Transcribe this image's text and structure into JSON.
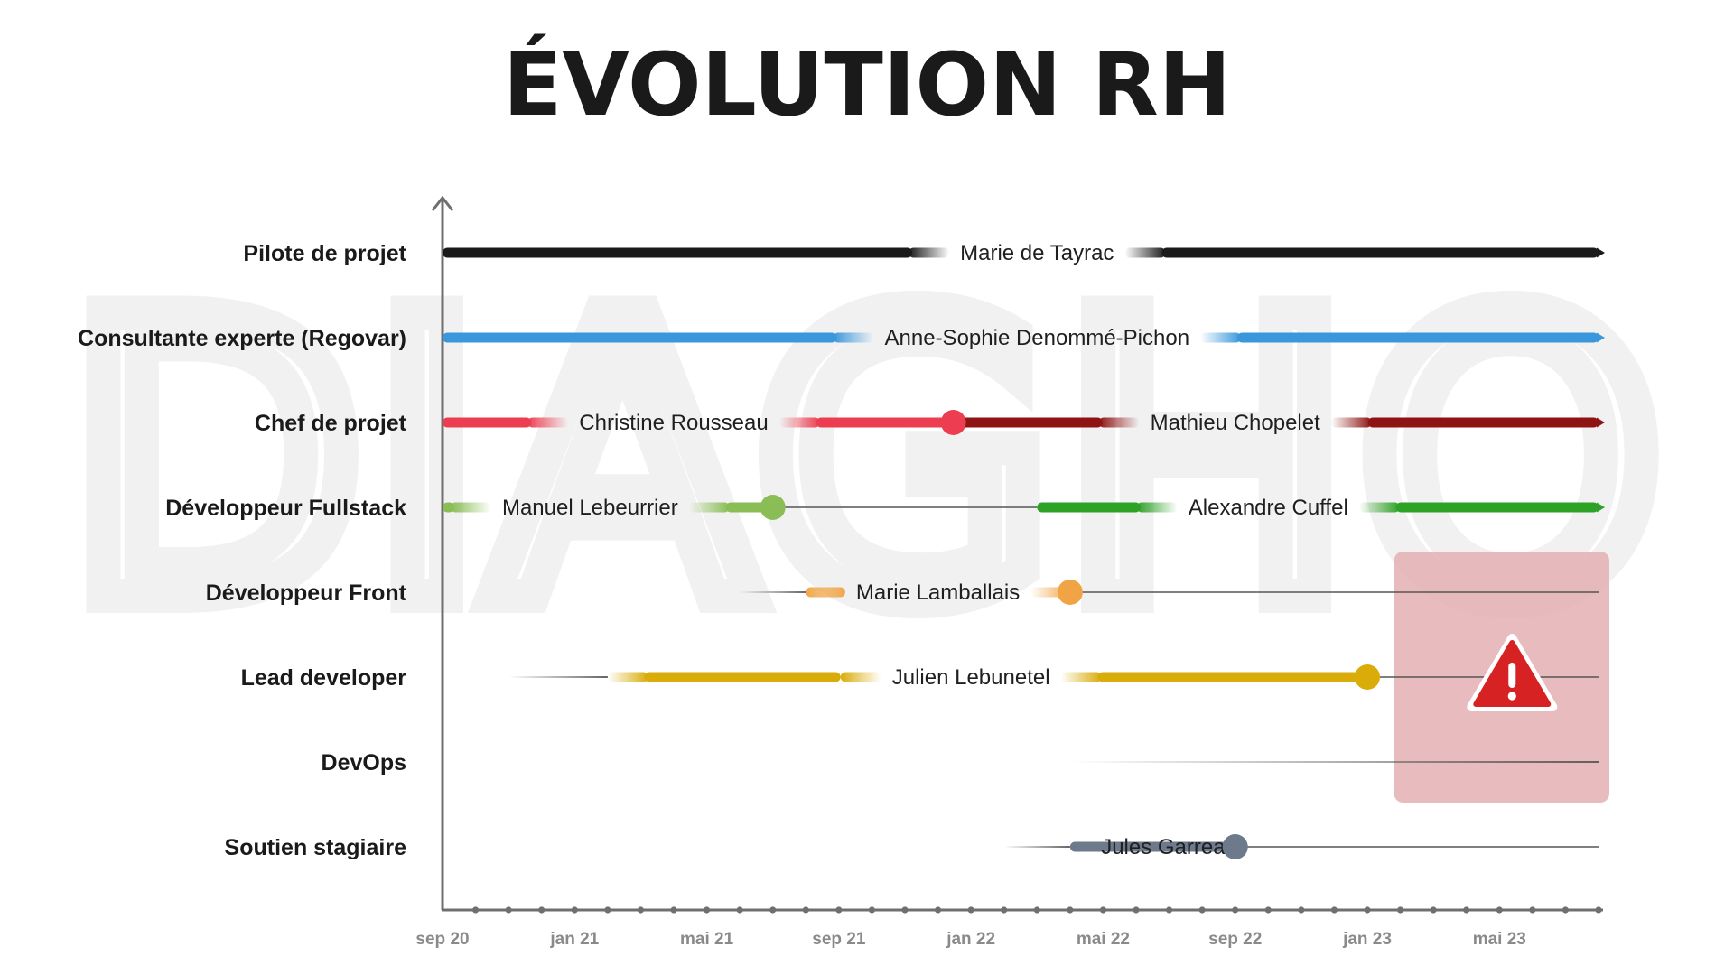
{
  "title": "ÉVOLUTION RH",
  "watermark": "DIAGHO",
  "colors": {
    "axis": "#6f6f6f",
    "thin_line": "#555555",
    "warning_zone": "#e4b0b4",
    "warning_red": "#d62222"
  },
  "chart_data": {
    "type": "gantt",
    "x_axis": {
      "ticks": [
        "sep 20",
        "jan 21",
        "mai 21",
        "sep 21",
        "jan 22",
        "mai 22",
        "sep 22",
        "jan 23",
        "mai 23"
      ],
      "range": [
        "2020-09",
        "2023-08"
      ],
      "minor_tick_interval": "1 month"
    },
    "rows": [
      {
        "role": "Pilote de projet",
        "segments": [
          {
            "person": "Marie de Tayrac",
            "color": "#1a1a1a",
            "start": "2020-09",
            "end": "2023-08",
            "ongoing": true,
            "label_at": "2022-03"
          }
        ]
      },
      {
        "role": "Consultante experte (Regovar)",
        "segments": [
          {
            "person": "Anne-Sophie Denommé-Pichon",
            "color": "#3b97dc",
            "start": "2020-09",
            "end": "2023-08",
            "ongoing": true,
            "label_at": "2022-03"
          }
        ]
      },
      {
        "role": "Chef de projet",
        "segments": [
          {
            "person": "Christine Rousseau",
            "color": "#ec3e50",
            "start": "2020-09",
            "end": "2021-12-15",
            "end_marker": true,
            "label_at": "2021-04"
          },
          {
            "person": "Mathieu Chopelet",
            "color": "#8e1414",
            "start": "2021-12-15",
            "end": "2023-08",
            "ongoing": true,
            "label_at": "2022-09"
          }
        ]
      },
      {
        "role": "Développeur Fullstack",
        "segments": [
          {
            "person": "Manuel Lebeurrier",
            "color": "#8abd55",
            "start": "2020-09",
            "end": "2021-07",
            "end_marker": true,
            "trail_to": "2022-03",
            "label_at": "2021-01-15"
          },
          {
            "person": "Alexandre Cuffel",
            "color": "#2ea226",
            "start": "2022-03",
            "end": "2023-08",
            "ongoing": true,
            "label_at": "2022-10"
          }
        ]
      },
      {
        "role": "Développeur Front",
        "segments": [
          {
            "person": "Marie Lamballais",
            "color": "#f0a445",
            "lead_from": "2021-06",
            "start": "2021-08",
            "end": "2022-04",
            "end_marker": true,
            "trail_to": "2023-08",
            "label_at": "2021-12"
          }
        ]
      },
      {
        "role": "Lead developer",
        "segments": [
          {
            "person": "Julien Lebunetel",
            "color": "#d9ac0a",
            "lead_from": "2020-11",
            "start": "2021-02",
            "end": "2023-01",
            "end_marker": true,
            "trail_to": "2023-08",
            "label_at": "2022-01"
          }
        ]
      },
      {
        "role": "DevOps",
        "segments": [
          {
            "person": "",
            "color": "#555555",
            "lead_from": "2022-04",
            "start": "2022-04",
            "end": "2023-08",
            "thin_only": true
          }
        ]
      },
      {
        "role": "Soutien stagiaire",
        "segments": [
          {
            "person": "Jules Garreau",
            "color": "#6c7a8c",
            "lead_from": "2022-02",
            "start": "2022-04",
            "end": "2022-09",
            "end_marker": true,
            "trail_to": "2023-08",
            "label_at": "2022-07"
          }
        ]
      }
    ],
    "annotations": [
      {
        "type": "warning-zone",
        "start": "2023-02",
        "end": "2023-08",
        "rows": [
          "Développeur Front",
          "DevOps"
        ]
      },
      {
        "type": "warning-icon",
        "icon": "warning-triangle-icon",
        "row": "Lead developer",
        "at": "2023-05"
      }
    ],
    "legend": "none",
    "grid": false
  }
}
